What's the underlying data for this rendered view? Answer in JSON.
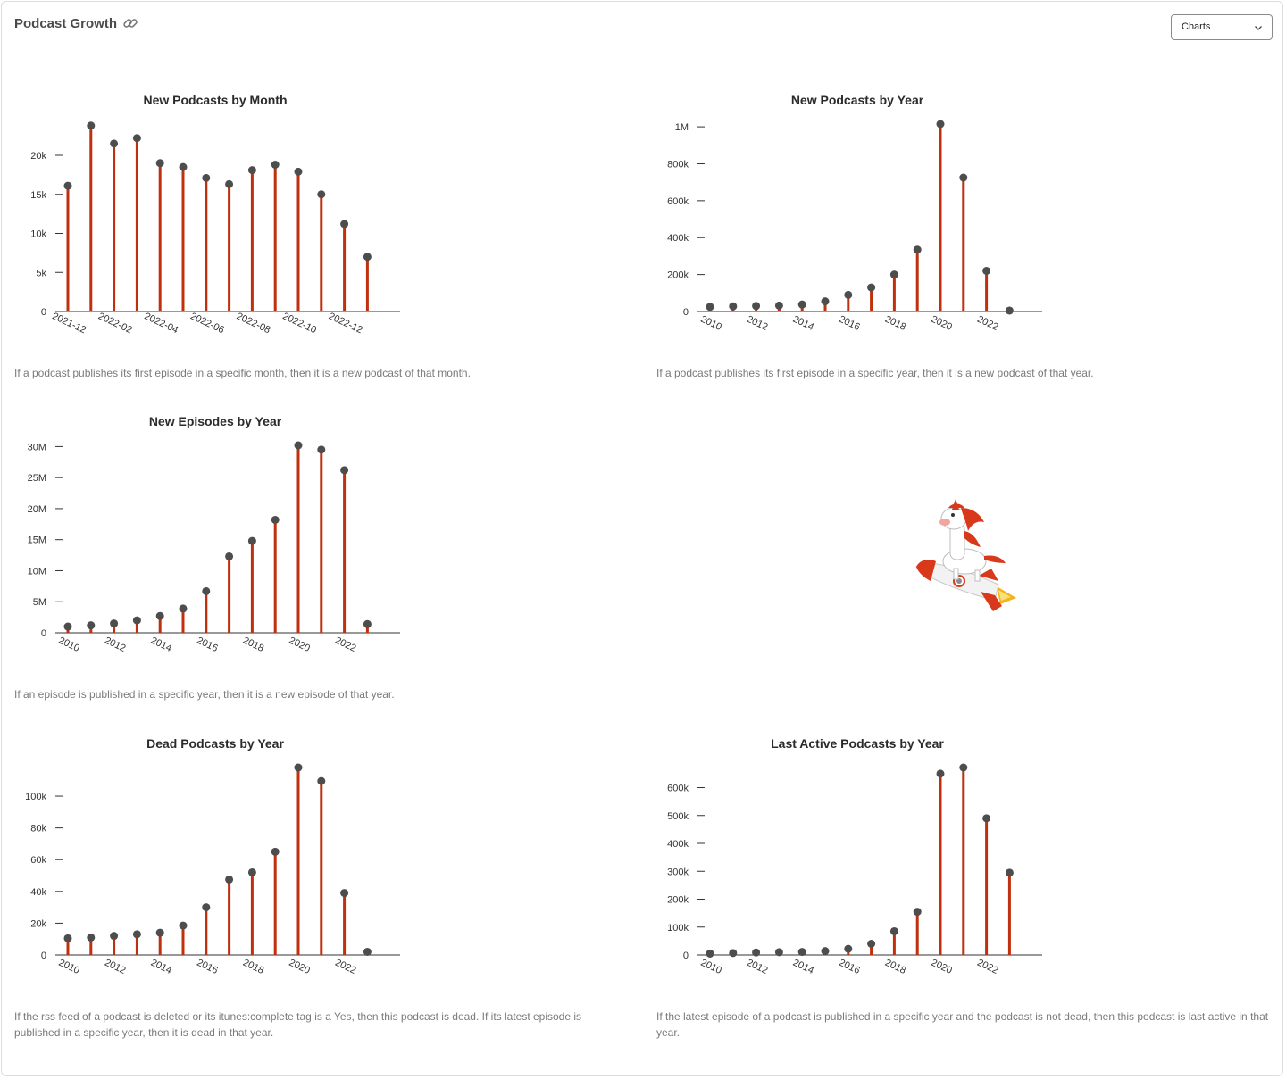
{
  "header": {
    "title": "Podcast Growth",
    "select_value": "Charts"
  },
  "colors": {
    "stem": "#c0300e",
    "dot": "#4d4d4d",
    "axis": "#333333"
  },
  "charts": {
    "c1": {
      "title": "New Podcasts by Month",
      "description": "If a podcast publishes its first episode in a specific month, then it is a new podcast of that month."
    },
    "c2": {
      "title": "New Podcasts by Year",
      "description": "If a podcast publishes its first episode in a specific year, then it is a new podcast of that year."
    },
    "c3": {
      "title": "New Episodes by Year",
      "description": "If an episode is published in a specific year, then it is a new episode of that year."
    },
    "c4": {
      "title": "Dead Podcasts by Year",
      "description": "If the rss feed of a podcast is deleted or its itunes:complete tag is a Yes, then this podcast is dead. If its latest episode is published in a specific year, then it is dead in that year."
    },
    "c5": {
      "title": "Last Active Podcasts by Year",
      "description": "If the latest episode of a podcast is published in a specific year and the podcast is not dead, then this podcast is last active in that year."
    }
  },
  "chart_data": [
    {
      "id": "c1",
      "type": "lollipop",
      "title": "New Podcasts by Month",
      "x": [
        "2021-12",
        "2022-01",
        "2022-02",
        "2022-03",
        "2022-04",
        "2022-05",
        "2022-06",
        "2022-07",
        "2022-08",
        "2022-09",
        "2022-10",
        "2022-11",
        "2022-12",
        "2023-01"
      ],
      "x_tick_labels": [
        "2021-12",
        "",
        "2022-02",
        "",
        "2022-04",
        "",
        "2022-06",
        "",
        "2022-08",
        "",
        "2022-10",
        "",
        "2022-12",
        ""
      ],
      "values": [
        16100,
        23800,
        21500,
        22200,
        19000,
        18500,
        17100,
        16300,
        18100,
        18800,
        17900,
        15000,
        11200,
        7000
      ],
      "yticks": [
        0,
        5000,
        10000,
        15000,
        20000
      ],
      "ytick_labels": [
        "0",
        "5k",
        "10k",
        "15k",
        "20k"
      ],
      "ylim": [
        0,
        24000
      ],
      "grid": false
    },
    {
      "id": "c2",
      "type": "lollipop",
      "title": "New Podcasts by Year",
      "x": [
        "2010",
        "2011",
        "2012",
        "2013",
        "2014",
        "2015",
        "2016",
        "2017",
        "2018",
        "2019",
        "2020",
        "2021",
        "2022",
        "2023"
      ],
      "x_tick_labels": [
        "2010",
        "",
        "2012",
        "",
        "2014",
        "",
        "2016",
        "",
        "2018",
        "",
        "2020",
        "",
        "2022",
        ""
      ],
      "values": [
        25000,
        28000,
        30000,
        32000,
        38000,
        55000,
        90000,
        130000,
        200000,
        335000,
        1015000,
        725000,
        220000,
        5000
      ],
      "yticks": [
        0,
        200000,
        400000,
        600000,
        800000,
        1000000
      ],
      "ytick_labels": [
        "0",
        "200k",
        "400k",
        "600k",
        "800k",
        "1M"
      ],
      "ylim": [
        0,
        1015000
      ],
      "grid": false
    },
    {
      "id": "c3",
      "type": "lollipop",
      "title": "New Episodes by Year",
      "x": [
        "2010",
        "2011",
        "2012",
        "2013",
        "2014",
        "2015",
        "2016",
        "2017",
        "2018",
        "2019",
        "2020",
        "2021",
        "2022",
        "2023"
      ],
      "x_tick_labels": [
        "2010",
        "",
        "2012",
        "",
        "2014",
        "",
        "2016",
        "",
        "2018",
        "",
        "2020",
        "",
        "2022",
        ""
      ],
      "values": [
        1000000,
        1200000,
        1500000,
        2000000,
        2700000,
        3900000,
        6700000,
        12300000,
        14800000,
        18200000,
        30200000,
        29500000,
        26200000,
        1400000
      ],
      "yticks": [
        0,
        5000000,
        10000000,
        15000000,
        20000000,
        25000000,
        30000000
      ],
      "ytick_labels": [
        "0",
        "5M",
        "10M",
        "15M",
        "20M",
        "25M",
        "30M"
      ],
      "ylim": [
        0,
        30200000
      ],
      "grid": false
    },
    {
      "id": "c4",
      "type": "lollipop",
      "title": "Dead Podcasts by Year",
      "x": [
        "2010",
        "2011",
        "2012",
        "2013",
        "2014",
        "2015",
        "2016",
        "2017",
        "2018",
        "2019",
        "2020",
        "2021",
        "2022",
        "2023"
      ],
      "x_tick_labels": [
        "2010",
        "",
        "2012",
        "",
        "2014",
        "",
        "2016",
        "",
        "2018",
        "",
        "2020",
        "",
        "2022",
        ""
      ],
      "values": [
        10500,
        11000,
        12000,
        13000,
        14000,
        18500,
        30000,
        47500,
        52000,
        65000,
        118000,
        109500,
        39000,
        2000
      ],
      "yticks": [
        0,
        20000,
        40000,
        60000,
        80000,
        100000
      ],
      "ytick_labels": [
        "0",
        "20k",
        "40k",
        "60k",
        "80k",
        "100k"
      ],
      "ylim": [
        0,
        118000
      ],
      "grid": false
    },
    {
      "id": "c5",
      "type": "lollipop",
      "title": "Last Active Podcasts by Year",
      "x": [
        "2010",
        "2011",
        "2012",
        "2013",
        "2014",
        "2015",
        "2016",
        "2017",
        "2018",
        "2019",
        "2020",
        "2021",
        "2022",
        "2023"
      ],
      "x_tick_labels": [
        "2010",
        "",
        "2012",
        "",
        "2014",
        "",
        "2016",
        "",
        "2018",
        "",
        "2020",
        "",
        "2022",
        ""
      ],
      "values": [
        5000,
        7000,
        9000,
        10000,
        11000,
        14000,
        22000,
        40000,
        85000,
        155000,
        650000,
        672000,
        490000,
        295000
      ],
      "yticks": [
        0,
        100000,
        200000,
        300000,
        400000,
        500000,
        600000
      ],
      "ytick_labels": [
        "0",
        "100k",
        "200k",
        "300k",
        "400k",
        "500k",
        "600k"
      ],
      "ylim": [
        0,
        672000
      ],
      "grid": false
    }
  ]
}
